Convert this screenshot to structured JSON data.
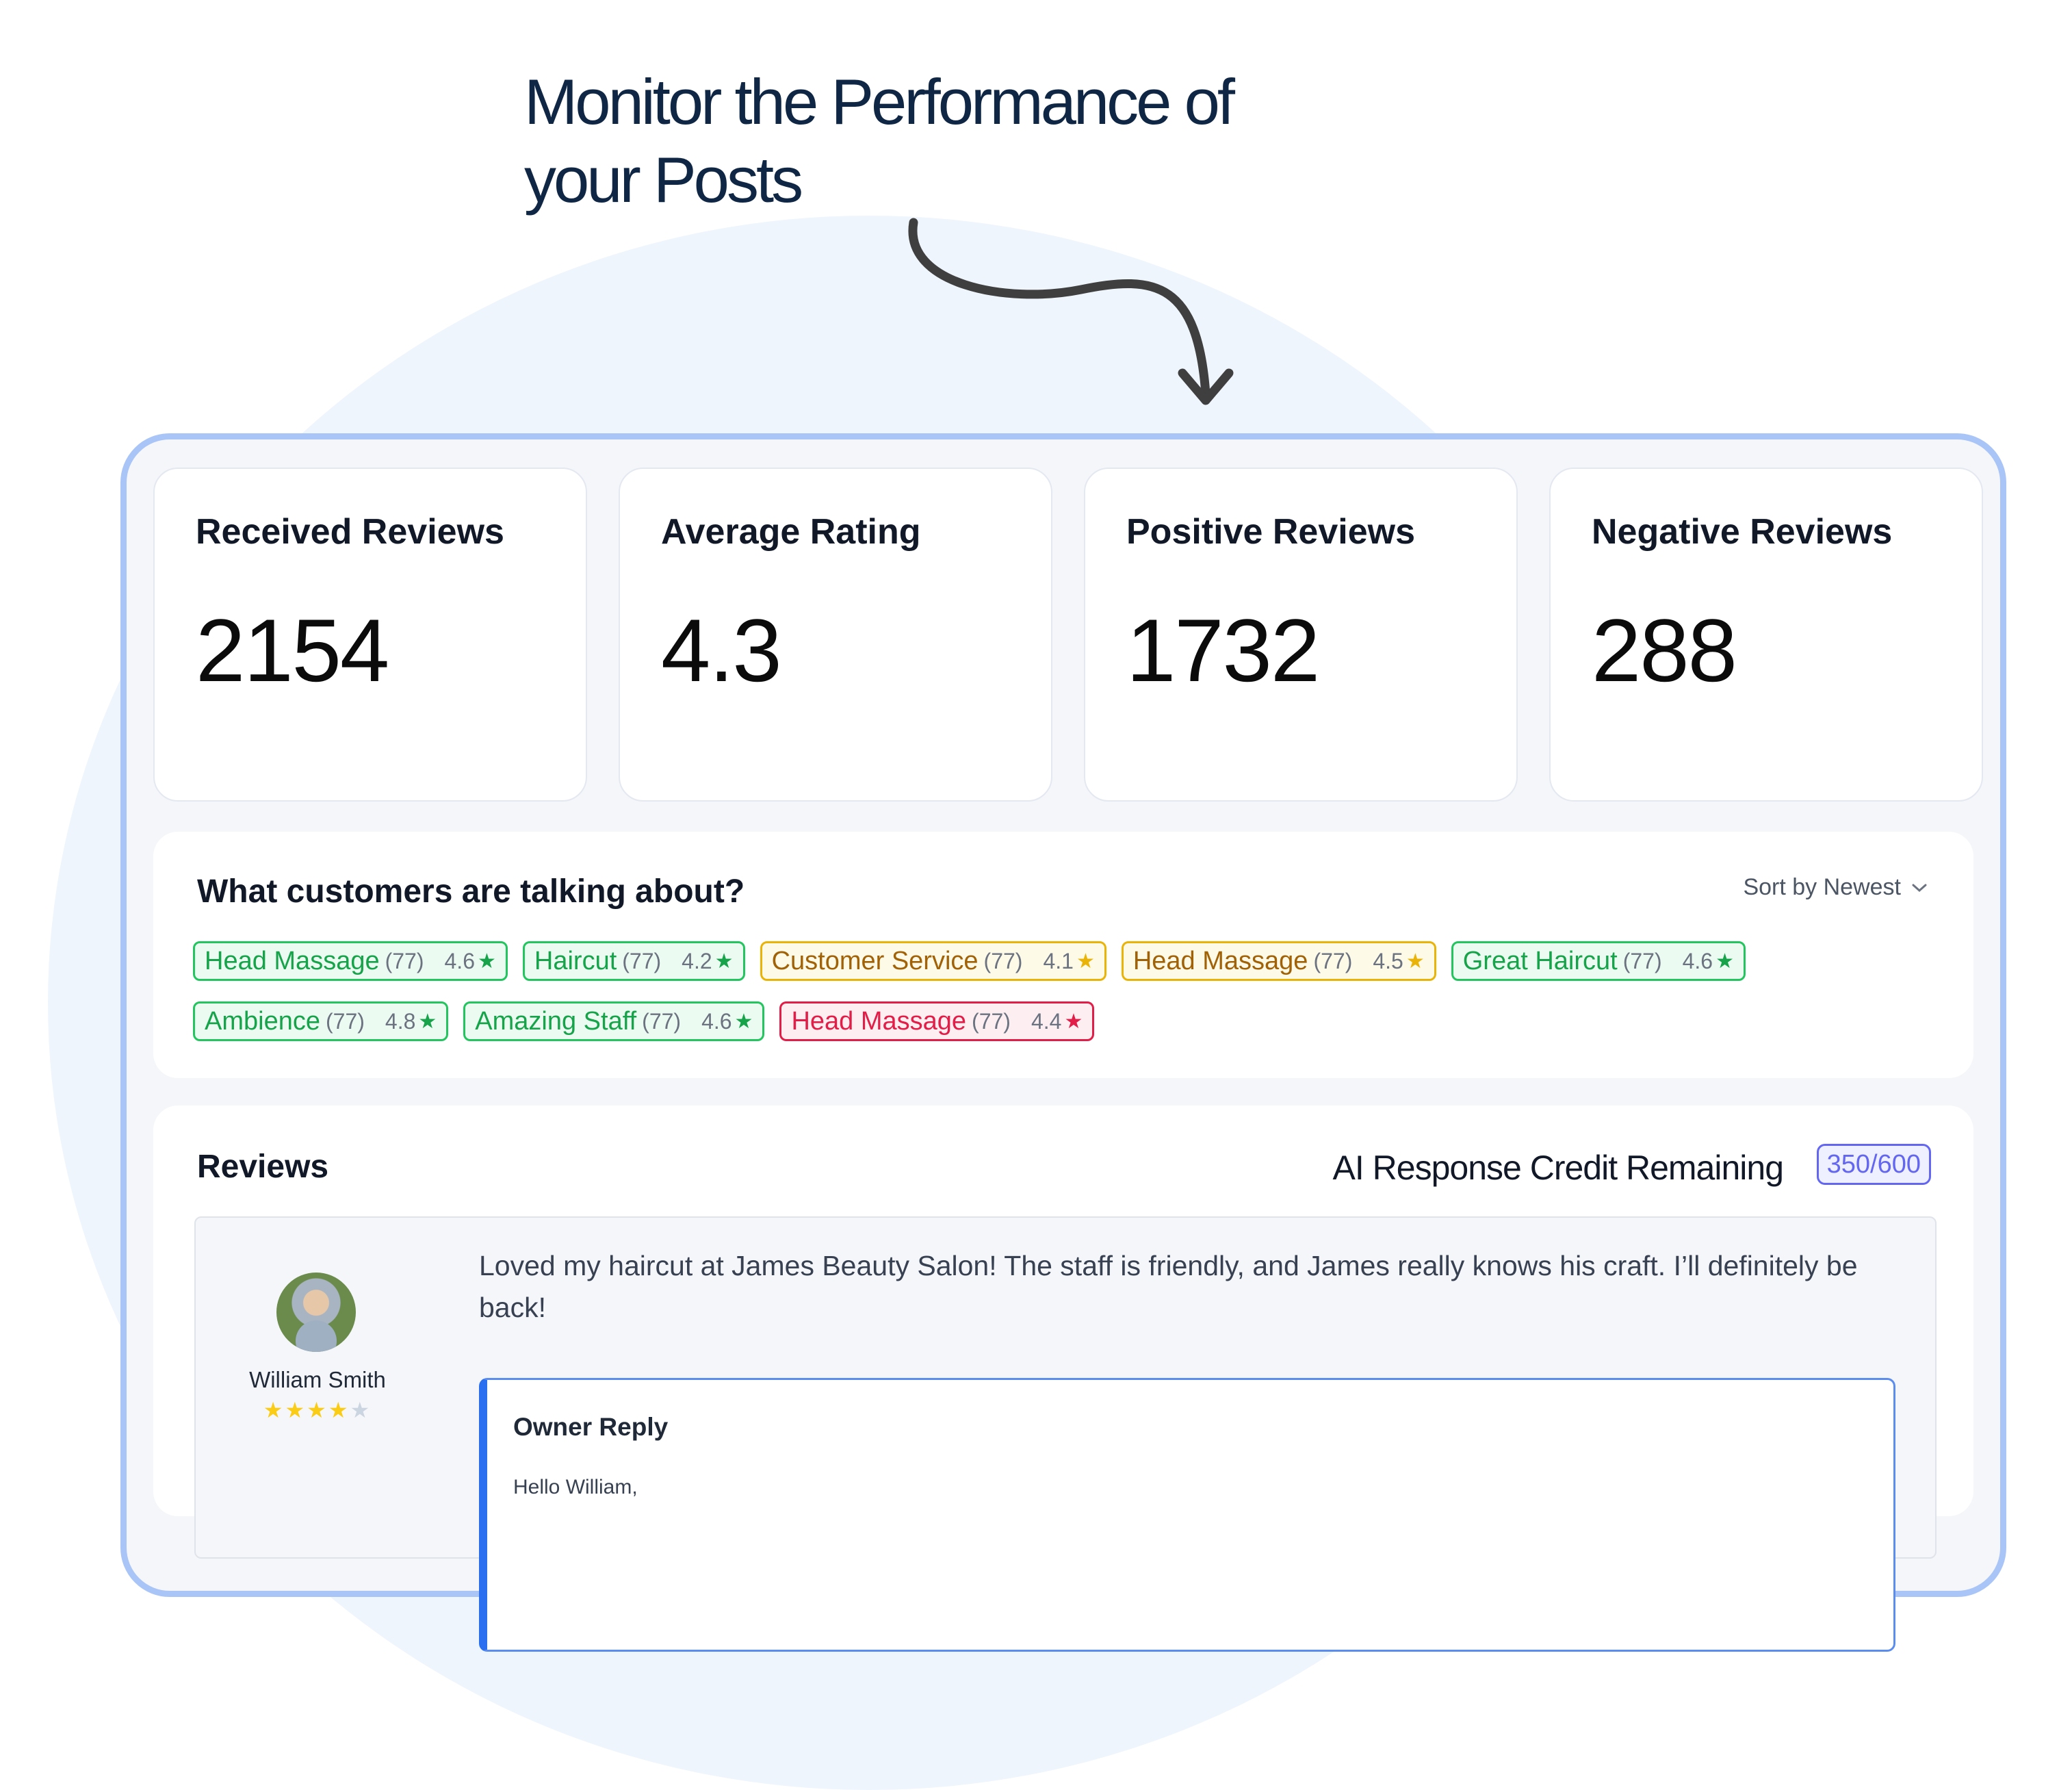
{
  "headline": "Monitor the Performance of your Posts",
  "stats": [
    {
      "label": "Received Reviews",
      "value": "2154"
    },
    {
      "label": "Average Rating",
      "value": "4.3"
    },
    {
      "label": "Positive Reviews",
      "value": "1732"
    },
    {
      "label": "Negative Reviews",
      "value": "288"
    }
  ],
  "topics": {
    "title": "What customers are talking about?",
    "sort_label": "Sort by Newest",
    "sort_icon": "chevron-down-icon",
    "chips": [
      {
        "name": "Head Massage",
        "count": "(77)",
        "rating": "4.6",
        "tone": "green"
      },
      {
        "name": "Haircut",
        "count": "(77)",
        "rating": "4.2",
        "tone": "green"
      },
      {
        "name": "Customer Service",
        "count": "(77)",
        "rating": "4.1",
        "tone": "yellow"
      },
      {
        "name": "Head Massage",
        "count": "(77)",
        "rating": "4.5",
        "tone": "yellow"
      },
      {
        "name": "Great Haircut",
        "count": "(77)",
        "rating": "4.6",
        "tone": "green"
      },
      {
        "name": "Ambience",
        "count": "(77)",
        "rating": "4.8",
        "tone": "green"
      },
      {
        "name": "Amazing Staff",
        "count": "(77)",
        "rating": "4.6",
        "tone": "green"
      },
      {
        "name": "Head Massage",
        "count": "(77)",
        "rating": "4.4",
        "tone": "red"
      }
    ]
  },
  "reviews": {
    "title": "Reviews",
    "credit_label": "AI Response Credit Remaining",
    "credit_value": "350/600",
    "items": [
      {
        "reviewer": "William Smith",
        "stars": 4,
        "max_stars": 5,
        "text": "Loved my haircut at James Beauty Salon! The staff is friendly, and James really knows his craft. I’ll definitely be back!",
        "reply_title": "Owner Reply",
        "reply_text": "Hello William,"
      }
    ]
  },
  "colors": {
    "frame_border": "#a9c4f7",
    "positive": "#16a34a",
    "neutral": "#a16207",
    "negative": "#e11d48",
    "accent": "#6366f1",
    "reply_accent": "#2b6ff1"
  }
}
